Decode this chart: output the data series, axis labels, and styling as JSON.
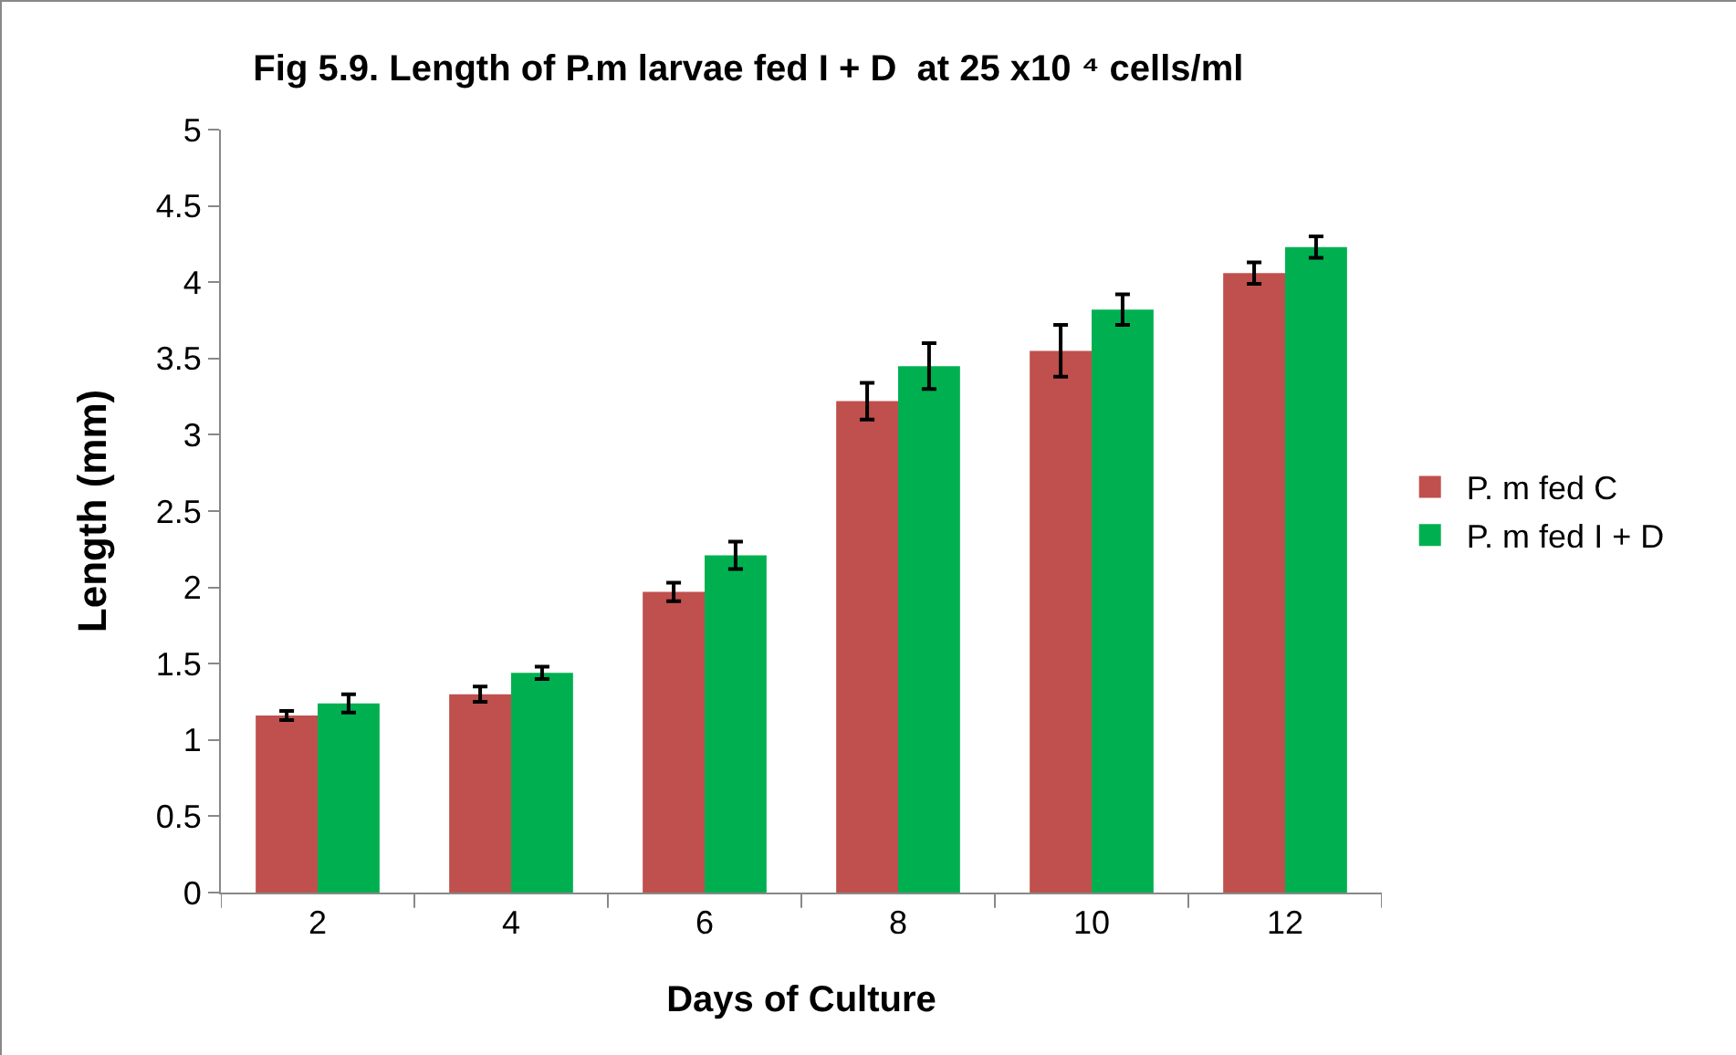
{
  "chart_data": {
    "type": "bar",
    "title": "Fig 5.9. Length of P.m larvae fed I + D  at 25 x10 ⁴ cells/ml",
    "xlabel": "Days of Culture",
    "ylabel": "Length (mm)",
    "categories": [
      "2",
      "4",
      "6",
      "8",
      "10",
      "12"
    ],
    "series": [
      {
        "name": "P. m fed C",
        "color": "#c0504d",
        "values": [
          1.16,
          1.3,
          1.97,
          3.22,
          3.55,
          4.06
        ],
        "errors": [
          0.03,
          0.05,
          0.06,
          0.12,
          0.17,
          0.07
        ]
      },
      {
        "name": "P. m fed I + D",
        "color": "#00b050",
        "values": [
          1.24,
          1.44,
          2.21,
          3.45,
          3.82,
          4.23
        ],
        "errors": [
          0.06,
          0.04,
          0.09,
          0.15,
          0.1,
          0.07
        ]
      }
    ],
    "ylim": [
      0,
      5
    ],
    "yticks": [
      0,
      0.5,
      1,
      1.5,
      2,
      2.5,
      3,
      3.5,
      4,
      4.5,
      5
    ],
    "grid": false,
    "legend": "right"
  }
}
